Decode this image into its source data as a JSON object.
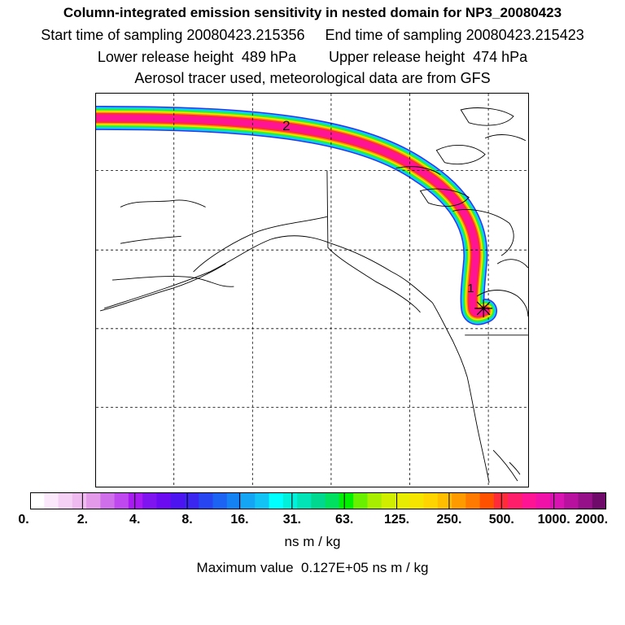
{
  "header": {
    "title": "Column-integrated emission sensitivity in nested domain for NP3_20080423",
    "line1": "Start time of sampling 20080423.215356     End time of sampling 20080423.215423",
    "line2": "Lower release height  489 hPa        Upper release height  474 hPa",
    "line3": "Aerosol tracer used, meteorological data are from GFS"
  },
  "map": {
    "labels": {
      "label_2": "2",
      "label_1": "1"
    }
  },
  "legend": {
    "ticks": [
      "0.",
      "2.",
      "4.",
      "8.",
      "16.",
      "31.",
      "63.",
      "125.",
      "250.",
      "500.",
      "1000.",
      "2000."
    ],
    "colors": [
      "#ffffff",
      "#fbe8fb",
      "#f5d2f5",
      "#eebaf0",
      "#e39be9",
      "#cf6fe9",
      "#bf48ee",
      "#a91af2",
      "#7f14f0",
      "#6a0bf2",
      "#4b14f0",
      "#3a26f0",
      "#2746f2",
      "#1d63f3",
      "#1482f3",
      "#14a5f5",
      "#12c4f6",
      "#00ffff",
      "#00f0dc",
      "#00e4b8",
      "#00d890",
      "#00e060",
      "#00f000",
      "#68f000",
      "#a8ee00",
      "#cfee00",
      "#e8ec00",
      "#f4e400",
      "#ffd400",
      "#ffbf00",
      "#ff9b00",
      "#ff7a00",
      "#ff5100",
      "#ff2b3a",
      "#ff1e6a",
      "#ff1493",
      "#f011a8",
      "#d912b2",
      "#b8119f",
      "#961089",
      "#6f0a6a"
    ],
    "units": "ns m / kg",
    "max_value": "Maximum value  0.127E+05 ns m / kg"
  }
}
